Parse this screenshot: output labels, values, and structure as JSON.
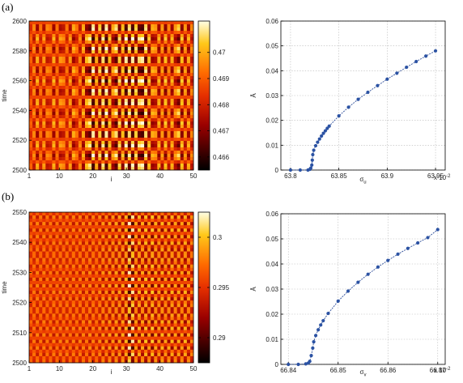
{
  "panels": [
    {
      "label": "(a)"
    },
    {
      "label": "(b)"
    }
  ],
  "chart_data": [
    {
      "type": "heatmap",
      "panel": "(a)",
      "xlabel": "i",
      "ylabel": "time",
      "xlim": [
        1,
        50
      ],
      "ylim": [
        2500,
        2600
      ],
      "xticks": [
        1,
        10,
        20,
        30,
        40,
        50
      ],
      "yticks": [
        2500,
        2520,
        2540,
        2560,
        2580,
        2600
      ],
      "colorbar": {
        "min": 0.4655,
        "max": 0.4712,
        "ticks": [
          0.466,
          0.467,
          0.468,
          0.469,
          0.47
        ],
        "tick_labels": [
          "0.466",
          "0.467",
          "0.468",
          "0.469",
          "0.47"
        ]
      },
      "column_amplitude": [
        0.2,
        0.4,
        0.6,
        0.3,
        0.5,
        0.4,
        0.3,
        0.6,
        0.3,
        0.5,
        0.4,
        0.3,
        0.5,
        0.6,
        0.3,
        0.4,
        0.6,
        0.7,
        0.9,
        1.0,
        0.6,
        0.8,
        0.9,
        1.0,
        0.7,
        0.6,
        0.9,
        0.8,
        0.7,
        1.0,
        0.9,
        1.0,
        0.8,
        0.9,
        1.0,
        0.9,
        0.7,
        0.6,
        0.5,
        0.6,
        0.5,
        0.7,
        0.4,
        0.6,
        0.5,
        0.8,
        0.7,
        0.5,
        0.6,
        0.4
      ],
      "column_phase": [
        0,
        1,
        0,
        1,
        0,
        1,
        1,
        0,
        1,
        0,
        0,
        1,
        0,
        1,
        1,
        0,
        1,
        0,
        0,
        1,
        0,
        1,
        0,
        1,
        0,
        1,
        1,
        0,
        1,
        0,
        1,
        0,
        1,
        0,
        0,
        1,
        0,
        1,
        1,
        0,
        1,
        0,
        1,
        0,
        1,
        1,
        0,
        1,
        0,
        1
      ],
      "time_period": 14.3
    },
    {
      "type": "scatter",
      "panel": "(a)",
      "xlabel": "σ_u",
      "xlabel_main": "σ",
      "xlabel_sub": "u",
      "ylabel": "Ā",
      "x_multiplier": "x 10-2",
      "x_multiplier_main": "x 10",
      "x_multiplier_exp": "-2",
      "xlim": [
        63.79,
        63.96
      ],
      "ylim": [
        0,
        0.06
      ],
      "xticks": [
        63.8,
        63.85,
        63.9,
        63.95
      ],
      "xtick_labels": [
        "63.8",
        "63.85",
        "63.9",
        "63.95"
      ],
      "yticks": [
        0,
        0.01,
        0.02,
        0.03,
        0.04,
        0.05,
        0.06
      ],
      "ytick_labels": [
        "0",
        "0.01",
        "0.02",
        "0.03",
        "0.04",
        "0.05",
        "0.06"
      ],
      "grid": true,
      "x": [
        63.8,
        63.81,
        63.818,
        63.82,
        63.821,
        63.822,
        63.8225,
        63.823,
        63.824,
        63.826,
        63.828,
        63.83,
        63.832,
        63.834,
        63.836,
        63.838,
        63.84,
        63.85,
        63.86,
        63.87,
        63.88,
        63.89,
        63.9,
        63.91,
        63.92,
        63.93,
        63.94,
        63.95
      ],
      "y": [
        0,
        0,
        0,
        0.0003,
        0.0008,
        0.002,
        0.004,
        0.0062,
        0.008,
        0.0098,
        0.0112,
        0.0125,
        0.0137,
        0.0148,
        0.0158,
        0.0168,
        0.0177,
        0.0218,
        0.0253,
        0.0285,
        0.0313,
        0.034,
        0.0366,
        0.039,
        0.0414,
        0.0437,
        0.0459,
        0.048
      ]
    },
    {
      "type": "heatmap",
      "panel": "(b)",
      "xlabel": "i",
      "ylabel": "time",
      "xlim": [
        1,
        50
      ],
      "ylim": [
        2500,
        2550
      ],
      "xticks": [
        1,
        10,
        20,
        30,
        40,
        50
      ],
      "yticks": [
        2500,
        2510,
        2520,
        2530,
        2540,
        2550
      ],
      "colorbar": {
        "min": 0.2875,
        "max": 0.3025,
        "ticks": [
          0.29,
          0.295,
          0.3
        ],
        "tick_labels": [
          "0.29",
          "0.295",
          "0.3"
        ]
      },
      "column_amplitude": [
        0.25,
        0.3,
        0.35,
        0.3,
        0.35,
        0.3,
        0.3,
        0.35,
        0.3,
        0.35,
        0.3,
        0.35,
        0.3,
        0.35,
        0.3,
        0.35,
        0.35,
        0.3,
        0.4,
        0.35,
        0.3,
        0.4,
        0.45,
        0.4,
        0.5,
        0.45,
        0.5,
        0.5,
        0.55,
        0.6,
        0.95,
        0.9,
        0.5,
        0.6,
        0.55,
        0.65,
        0.5,
        0.7,
        0.55,
        0.5,
        0.6,
        0.5,
        0.55,
        0.6,
        0.5,
        0.55,
        0.5,
        0.6,
        0.5,
        0.4
      ],
      "column_phase": [
        0,
        1,
        0,
        1,
        0,
        1,
        0,
        1,
        0,
        1,
        0,
        1,
        0,
        1,
        0,
        1,
        0,
        1,
        0,
        1,
        0,
        1,
        0,
        1,
        0,
        1,
        0,
        1,
        0,
        1,
        0,
        1,
        0,
        1,
        0,
        1,
        0,
        1,
        0,
        1,
        0,
        1,
        0,
        1,
        0,
        1,
        0,
        1,
        0,
        1
      ],
      "time_period": 4.1
    },
    {
      "type": "scatter",
      "panel": "(b)",
      "xlabel": "σ_v",
      "xlabel_main": "σ",
      "xlabel_sub": "v",
      "ylabel": "Ā",
      "x_multiplier": "x 10-2",
      "x_multiplier_main": "x 10",
      "x_multiplier_exp": "-2",
      "xlim": [
        66.8385,
        66.8715
      ],
      "ylim": [
        0,
        0.06
      ],
      "xticks": [
        66.84,
        66.85,
        66.86,
        66.87
      ],
      "xtick_labels": [
        "66.84",
        "66.85",
        "66.86",
        "66.87"
      ],
      "yticks": [
        0,
        0.01,
        0.02,
        0.03,
        0.04,
        0.05,
        0.06
      ],
      "ytick_labels": [
        "0",
        "0.01",
        "0.02",
        "0.03",
        "0.04",
        "0.05",
        "0.06"
      ],
      "grid": true,
      "x": [
        66.84,
        66.842,
        66.8435,
        66.844,
        66.8443,
        66.8446,
        66.8449,
        66.8451,
        66.8455,
        66.846,
        66.8465,
        66.847,
        66.848,
        66.85,
        66.852,
        66.854,
        66.856,
        66.858,
        66.86,
        66.862,
        66.864,
        66.866,
        66.868,
        66.87
      ],
      "y": [
        0,
        0,
        0.0002,
        0.0005,
        0.0012,
        0.0035,
        0.0065,
        0.009,
        0.0115,
        0.0138,
        0.0157,
        0.0174,
        0.0203,
        0.0252,
        0.0292,
        0.0327,
        0.0359,
        0.0388,
        0.0414,
        0.0439,
        0.0462,
        0.0484,
        0.0505,
        0.0537
      ]
    }
  ]
}
